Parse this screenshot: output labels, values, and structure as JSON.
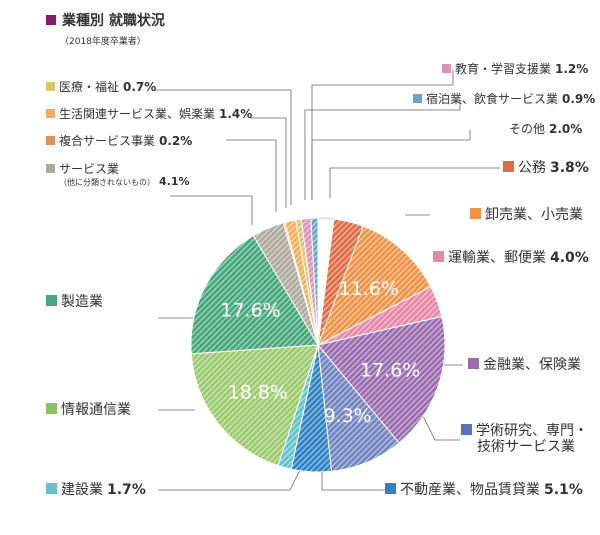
{
  "chart_data": {
    "type": "pie",
    "title": "業種別 就職状況",
    "subtitle": "（2018年度卒業者）",
    "slices": [
      {
        "name": "その他",
        "value": 2.0,
        "label": "2.0%",
        "color": "#ffffff"
      },
      {
        "name": "公務",
        "value": 3.8,
        "label": "3.8%",
        "color": "#e06c43"
      },
      {
        "name": "卸売業、小売業",
        "value": 11.6,
        "label": "11.6%",
        "color": "#ef9447"
      },
      {
        "name": "運輸業、郵便業",
        "value": 4.0,
        "label": "4.0%",
        "color": "#e987a6"
      },
      {
        "name": "金融業、保険業",
        "value": 17.6,
        "label": "17.6%",
        "color": "#9b6cb0"
      },
      {
        "name": "学術研究、専門・技術サービス業",
        "value": 9.3,
        "label": "9.3%",
        "color": "#7185c0"
      },
      {
        "name": "不動産業、物品賃貸業",
        "value": 5.1,
        "label": "5.1%",
        "color": "#2f82c4"
      },
      {
        "name": "建設業",
        "value": 1.7,
        "label": "1.7%",
        "color": "#63c3cc"
      },
      {
        "name": "情報通信業",
        "value": 18.8,
        "label": "18.8%",
        "color": "#9ccb6e"
      },
      {
        "name": "製造業",
        "value": 17.6,
        "label": "17.6%",
        "color": "#46a87a"
      },
      {
        "name": "サービス業",
        "value": 4.1,
        "label": "4.1%",
        "color": "#aeab9c"
      },
      {
        "name": "複合サービス事業",
        "value": 0.2,
        "label": "0.2%",
        "color": "#d8925a"
      },
      {
        "name": "生活関連サービス業、娯楽業",
        "value": 1.4,
        "label": "1.4%",
        "color": "#f2b05c"
      },
      {
        "name": "医療・福祉",
        "value": 0.7,
        "label": "0.7%",
        "color": "#dbc46e"
      },
      {
        "name": "教育・学習支援業",
        "value": 1.2,
        "label": "1.2%",
        "color": "#de92b8"
      },
      {
        "name": "宿泊業、飲食サービス業",
        "value": 0.9,
        "label": "0.9%",
        "color": "#6aa5c8"
      }
    ],
    "inner_labels": [
      "11.6%",
      "17.6%",
      "9.3%",
      "18.8%",
      "17.6%"
    ],
    "legend": {
      "edu": {
        "name": "教育・学習支援業",
        "value": "1.2",
        "unit": "%"
      },
      "inn": {
        "name": "宿泊業、飲食サービス業",
        "value": "0.9",
        "unit": "%"
      },
      "other": {
        "name": "その他",
        "value": "2.0",
        "unit": "%"
      },
      "pub": {
        "name": "公務",
        "value": "3.8",
        "unit": "%"
      },
      "ret": {
        "name": "卸売業、小売業"
      },
      "tra": {
        "name": "運輸業、郵便業",
        "value": "4.0",
        "unit": "%"
      },
      "fin": {
        "name": "金融業、保険業"
      },
      "aca": {
        "name1": "学術研究、専門・",
        "name2": "技術サービス業"
      },
      "rea": {
        "name": "不動産業、物品賃貸業",
        "value": "5.1",
        "unit": "%"
      },
      "con": {
        "name": "建設業",
        "value": "1.7",
        "unit": "%"
      },
      "ict": {
        "name": "情報通信業"
      },
      "man": {
        "name": "製造業"
      },
      "svc": {
        "name": "サービス業",
        "sub": "（他に分類されないもの）",
        "value": "4.1",
        "unit": "%"
      },
      "comp": {
        "name": "複合サービス事業",
        "value": "0.2",
        "unit": "%"
      },
      "life": {
        "name": "生活関連サービス業、娯楽業",
        "value": "1.4",
        "unit": "%"
      },
      "med": {
        "name": "医療・福祉",
        "value": "0.7",
        "unit": "%"
      }
    }
  }
}
